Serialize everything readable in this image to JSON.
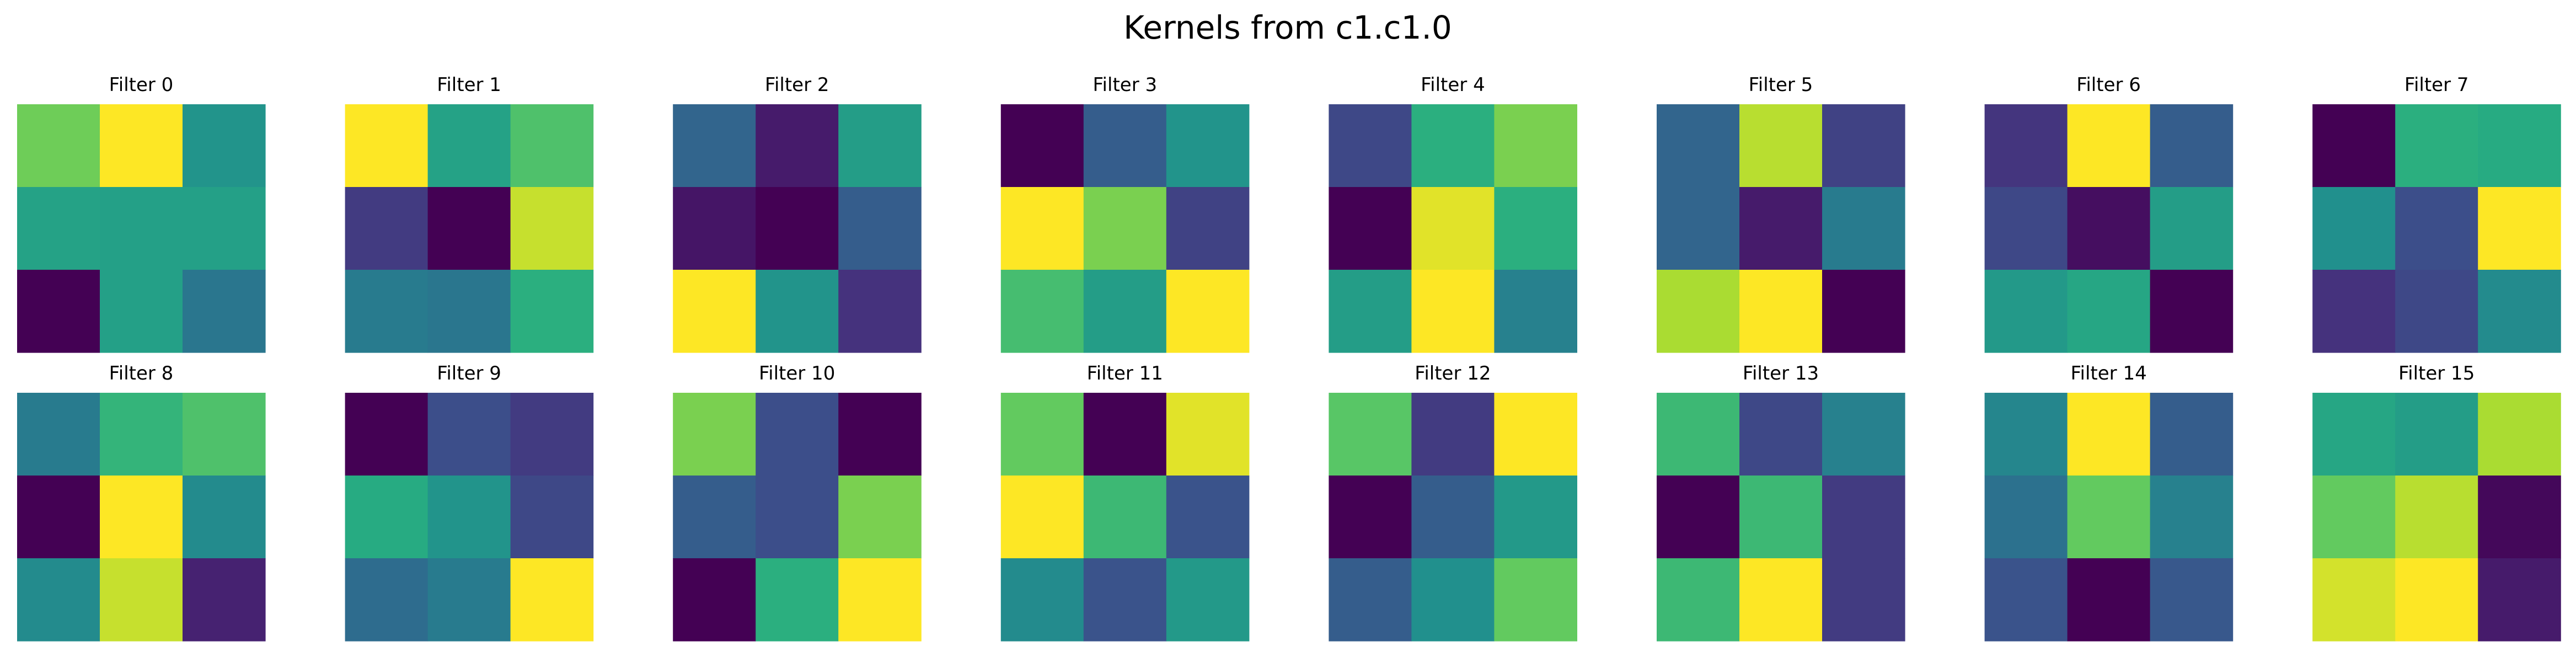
{
  "chart_data": {
    "type": "heatmap",
    "title": "Kernels from c1.c1.0",
    "colormap": "viridis",
    "grid": false,
    "axes_visible": false,
    "layout": {
      "rows": 2,
      "cols": 8
    },
    "kernel_size": [
      3,
      3
    ],
    "value_range": [
      0,
      1
    ],
    "filters": [
      {
        "name": "Filter 0",
        "values": [
          [
            0.78,
            1.0,
            0.52
          ],
          [
            0.58,
            0.57,
            0.57
          ],
          [
            0.0,
            0.57,
            0.4
          ]
        ]
      },
      {
        "name": "Filter 1",
        "values": [
          [
            1.0,
            0.58,
            0.72
          ],
          [
            0.18,
            0.0,
            0.92
          ],
          [
            0.42,
            0.4,
            0.64
          ]
        ]
      },
      {
        "name": "Filter 2",
        "values": [
          [
            0.33,
            0.08,
            0.56
          ],
          [
            0.06,
            0.0,
            0.3
          ],
          [
            1.0,
            0.52,
            0.15
          ]
        ]
      },
      {
        "name": "Filter 3",
        "values": [
          [
            0.0,
            0.3,
            0.52
          ],
          [
            1.0,
            0.8,
            0.2
          ],
          [
            0.7,
            0.56,
            1.0
          ]
        ]
      },
      {
        "name": "Filter 4",
        "values": [
          [
            0.22,
            0.64,
            0.8
          ],
          [
            0.0,
            0.96,
            0.64
          ],
          [
            0.56,
            1.0,
            0.44
          ]
        ]
      },
      {
        "name": "Filter 5",
        "values": [
          [
            0.33,
            0.9,
            0.2
          ],
          [
            0.33,
            0.08,
            0.42
          ],
          [
            0.88,
            1.0,
            0.0
          ]
        ]
      },
      {
        "name": "Filter 6",
        "values": [
          [
            0.16,
            1.0,
            0.3
          ],
          [
            0.22,
            0.04,
            0.56
          ],
          [
            0.54,
            0.6,
            0.0
          ]
        ]
      },
      {
        "name": "Filter 7",
        "values": [
          [
            0.0,
            0.64,
            0.62
          ],
          [
            0.5,
            0.24,
            1.0
          ],
          [
            0.15,
            0.22,
            0.48
          ]
        ]
      },
      {
        "name": "Filter 8",
        "values": [
          [
            0.42,
            0.66,
            0.72
          ],
          [
            0.0,
            1.0,
            0.48
          ],
          [
            0.48,
            0.92,
            0.1
          ]
        ]
      },
      {
        "name": "Filter 9",
        "values": [
          [
            0.0,
            0.24,
            0.18
          ],
          [
            0.62,
            0.52,
            0.22
          ],
          [
            0.36,
            0.42,
            1.0
          ]
        ]
      },
      {
        "name": "Filter 10",
        "values": [
          [
            0.8,
            0.24,
            0.0
          ],
          [
            0.3,
            0.24,
            0.8
          ],
          [
            0.0,
            0.64,
            1.0
          ]
        ]
      },
      {
        "name": "Filter 11",
        "values": [
          [
            0.76,
            0.0,
            0.96
          ],
          [
            1.0,
            0.68,
            0.26
          ],
          [
            0.48,
            0.26,
            0.54
          ]
        ]
      },
      {
        "name": "Filter 12",
        "values": [
          [
            0.74,
            0.18,
            1.0
          ],
          [
            0.0,
            0.3,
            0.54
          ],
          [
            0.3,
            0.5,
            0.76
          ]
        ]
      },
      {
        "name": "Filter 13",
        "values": [
          [
            0.68,
            0.22,
            0.44
          ],
          [
            0.0,
            0.68,
            0.18
          ],
          [
            0.68,
            1.0,
            0.18
          ]
        ]
      },
      {
        "name": "Filter 14",
        "values": [
          [
            0.46,
            1.0,
            0.3
          ],
          [
            0.38,
            0.76,
            0.44
          ],
          [
            0.26,
            0.0,
            0.28
          ]
        ]
      },
      {
        "name": "Filter 15",
        "values": [
          [
            0.6,
            0.56,
            0.88
          ],
          [
            0.76,
            0.9,
            0.02
          ],
          [
            0.94,
            1.0,
            0.08
          ]
        ]
      }
    ]
  }
}
